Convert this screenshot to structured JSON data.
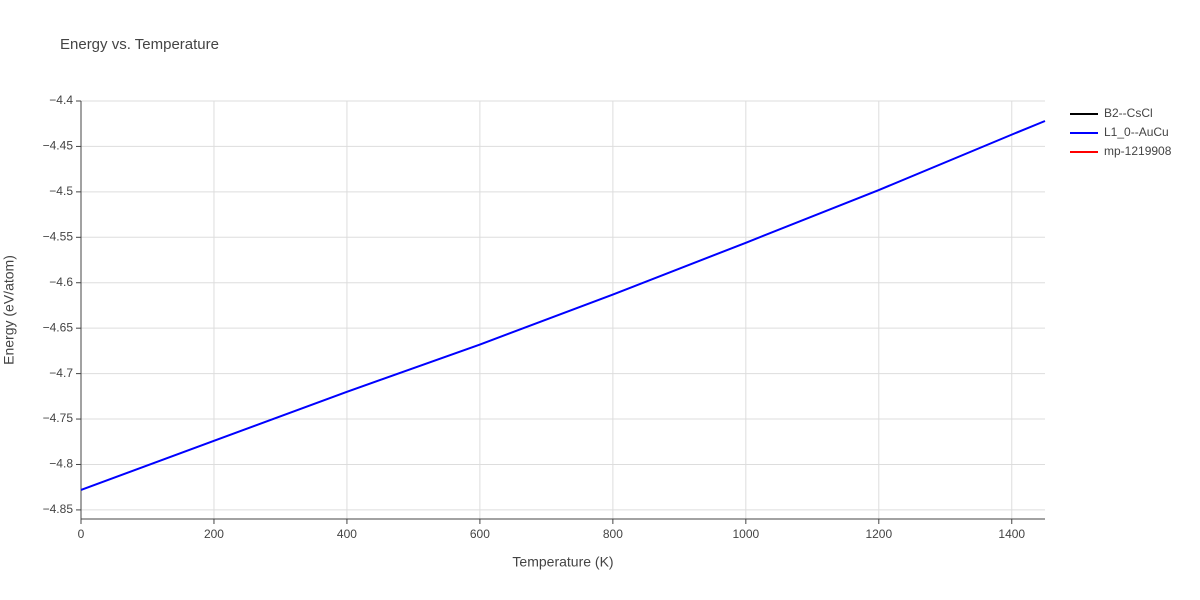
{
  "chart_data": {
    "type": "line",
    "title": "Energy vs. Temperature",
    "x_label": "Temperature (K)",
    "y_label": "Energy (eV/atom)",
    "x": [
      0,
      200,
      400,
      600,
      800,
      1000,
      1200,
      1400,
      1450
    ],
    "series": [
      {
        "name": "B2--CsCl",
        "color": "#000000",
        "values": [
          null,
          null,
          null,
          null,
          null,
          null,
          null,
          null,
          null
        ]
      },
      {
        "name": "L1_0--AuCu",
        "color": "#0000ff",
        "values": [
          -4.828,
          -4.774,
          -4.72,
          -4.668,
          -4.613,
          -4.556,
          -4.498,
          -4.437,
          -4.422
        ]
      },
      {
        "name": "mp-1219908",
        "color": "#ff0000",
        "values": [
          null,
          null,
          null,
          null,
          null,
          null,
          null,
          null,
          null
        ]
      }
    ],
    "xlim": [
      0,
      1450
    ],
    "ylim": [
      -4.86,
      -4.4
    ],
    "xticks": [
      0,
      200,
      400,
      600,
      800,
      1000,
      1200,
      1400
    ],
    "yticks": [
      {
        "value": -4.4,
        "label": "−4.4"
      },
      {
        "value": -4.45,
        "label": "−4.45"
      },
      {
        "value": -4.5,
        "label": "−4.5"
      },
      {
        "value": -4.55,
        "label": "−4.55"
      },
      {
        "value": -4.6,
        "label": "−4.6"
      },
      {
        "value": -4.65,
        "label": "−4.65"
      },
      {
        "value": -4.7,
        "label": "−4.7"
      },
      {
        "value": -4.75,
        "label": "−4.75"
      },
      {
        "value": -4.8,
        "label": "−4.8"
      },
      {
        "value": -4.85,
        "label": "−4.85"
      }
    ],
    "grid": true
  }
}
